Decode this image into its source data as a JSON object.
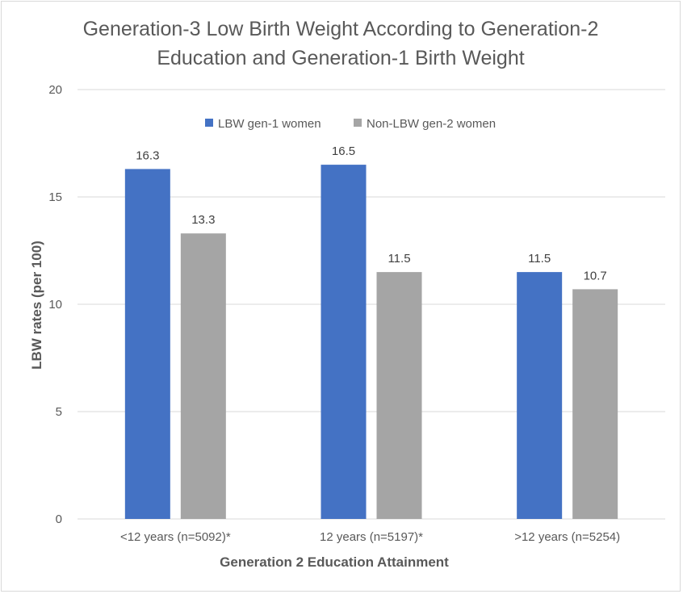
{
  "chart_data": {
    "type": "bar",
    "title_lines": [
      "Generation-3 Low Birth Weight According to Generation-2",
      "Education and Generation-1 Birth Weight"
    ],
    "xlabel": "Generation 2 Education Attainment",
    "ylabel": "LBW rates (per 100)",
    "categories": [
      "<12 years (n=5092)*",
      "12 years (n=5197)*",
      ">12 years (n=5254)"
    ],
    "series": [
      {
        "name": "LBW gen-1 women",
        "color": "#4472c4",
        "values": [
          16.3,
          16.5,
          11.5
        ],
        "labels": [
          "16.3",
          "16.5",
          "11.5"
        ]
      },
      {
        "name": "Non-LBW gen-2 women",
        "color": "#a5a5a5",
        "values": [
          13.3,
          11.5,
          10.7
        ],
        "labels": [
          "13.3",
          "11.5",
          "10.7"
        ]
      }
    ],
    "yticks": [
      "0",
      "5",
      "10",
      "15",
      "20"
    ],
    "ylim": [
      0,
      20
    ],
    "grid": true,
    "legend_position": "top"
  }
}
